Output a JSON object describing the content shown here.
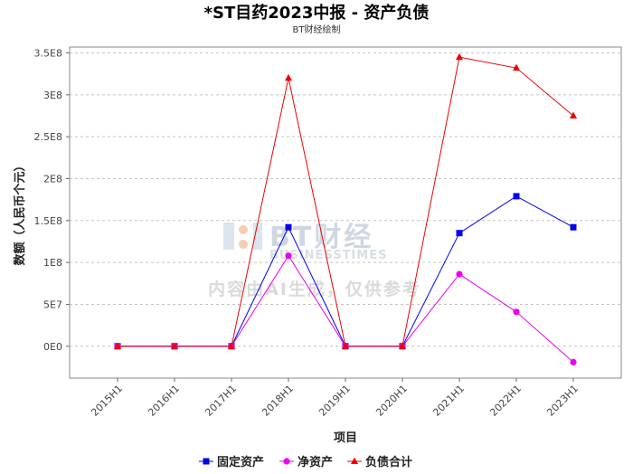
{
  "chart_data": {
    "type": "line",
    "title": "*ST目药2023中报 - 资产负债",
    "subtitle": "BT财经绘制",
    "xlabel": "项目",
    "ylabel": "数额（人民币个元）",
    "categories": [
      "2015H1",
      "2016H1",
      "2017H1",
      "2018H1",
      "2019H1",
      "2020H1",
      "2021H1",
      "2022H1",
      "2023H1"
    ],
    "y_ticks": [
      0,
      50000000,
      100000000,
      150000000,
      200000000,
      250000000,
      300000000,
      350000000
    ],
    "y_tick_labels": [
      "0E0",
      "5E7",
      "1E8",
      "1.5E8",
      "2E8",
      "2.5E8",
      "3E8",
      "3.5E8"
    ],
    "ylim": [
      -38000000,
      357000000
    ],
    "grid": true,
    "legend_position": "bottom",
    "series": [
      {
        "name": "固定资产",
        "color": "#0000ee",
        "marker": "square",
        "values": [
          0,
          0,
          0,
          142000000,
          0,
          0,
          135000000,
          179000000,
          142000000
        ]
      },
      {
        "name": "净资产",
        "color": "#ee00ee",
        "marker": "circle",
        "values": [
          0,
          0,
          0,
          108000000,
          0,
          0,
          86000000,
          41000000,
          -19000000
        ]
      },
      {
        "name": "负债合计",
        "color": "#ee0000",
        "marker": "triangle",
        "values": [
          0,
          0,
          0,
          320000000,
          0,
          0,
          345000000,
          332000000,
          275000000
        ]
      }
    ]
  },
  "watermark": {
    "brand_cn": "BT财经",
    "brand_en": "BUSINESSTIMES",
    "notice": "内容由AI生成，仅供参考"
  }
}
